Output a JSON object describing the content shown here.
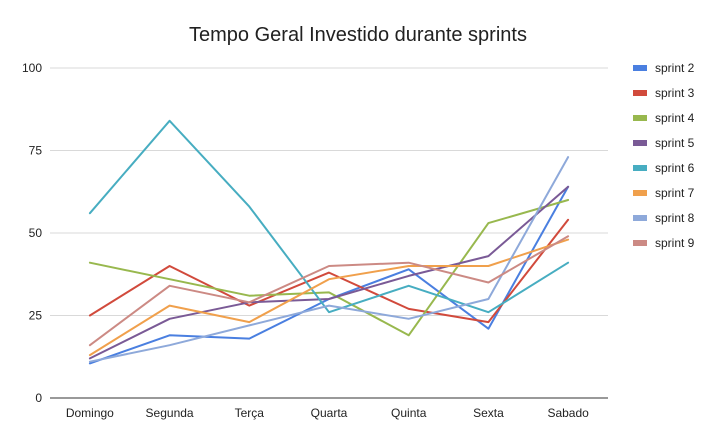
{
  "chart_data": {
    "type": "line",
    "title": "Tempo Geral Investido durante sprints",
    "xlabel": "",
    "ylabel": "",
    "categories": [
      "Domingo",
      "Segunda",
      "Terça",
      "Quarta",
      "Quinta",
      "Sexta",
      "Sabado"
    ],
    "ylim": [
      0,
      100
    ],
    "yticks": [
      0,
      25,
      50,
      75,
      100
    ],
    "grid": true,
    "legend_position": "right",
    "series": [
      {
        "name": "sprint 2",
        "color": "#4a7fe0",
        "values": [
          10.5,
          19,
          18,
          30,
          39,
          21,
          64
        ]
      },
      {
        "name": "sprint 3",
        "color": "#d14a3c",
        "values": [
          25,
          40,
          28,
          38,
          27,
          23,
          54
        ]
      },
      {
        "name": "sprint 4",
        "color": "#98b84e",
        "values": [
          41,
          36,
          31,
          32,
          19,
          53,
          60
        ]
      },
      {
        "name": "sprint 5",
        "color": "#7a5a96",
        "values": [
          12,
          24,
          29,
          30,
          37,
          43,
          64
        ]
      },
      {
        "name": "sprint 6",
        "color": "#47adc1",
        "values": [
          56,
          84,
          58,
          26,
          34,
          26,
          41
        ]
      },
      {
        "name": "sprint 7",
        "color": "#f0a04c",
        "values": [
          13,
          28,
          23,
          36,
          40,
          40,
          48
        ]
      },
      {
        "name": "sprint 8",
        "color": "#8ea9da",
        "values": [
          11,
          16,
          22,
          28,
          24,
          30,
          73
        ]
      },
      {
        "name": "sprint 9",
        "color": "#cc8a84",
        "values": [
          16,
          34,
          29,
          40,
          41,
          35,
          49
        ]
      }
    ]
  }
}
